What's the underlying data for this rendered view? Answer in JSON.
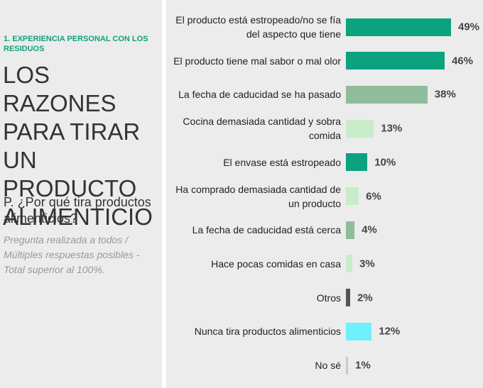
{
  "section": "1. EXPERIENCIA PERSONAL CON LOS RESIDUOS",
  "title": "LOS RAZONES PARA TIRAR UN PRODUCTO ALIMENTICIO",
  "question": "P. ¿Por qué tira productos alimenticios?",
  "note": "Pregunta realizada a todos / Múltiples respuestas posibles - Total superior al 100%.",
  "chart_data": {
    "type": "bar",
    "orientation": "horizontal",
    "categories": [
      "El producto está estropeado/no se fía del aspecto que tiene",
      "El producto tiene mal sabor o mal olor",
      "La fecha de caducidad se ha pasado",
      "Cocina demasiada cantidad y sobra comida",
      "El envase está estropeado",
      "Ha comprado demasiada cantidad de un producto",
      "La fecha de caducidad está cerca",
      "Hace pocas comidas en casa",
      "Otros",
      "Nunca tira productos alimenticios",
      "No sé"
    ],
    "values": [
      49,
      46,
      38,
      13,
      10,
      6,
      4,
      3,
      2,
      12,
      1
    ],
    "value_labels": [
      "49%",
      "46%",
      "38%",
      "13%",
      "10%",
      "6%",
      "4%",
      "3%",
      "2%",
      "12%",
      "1%"
    ],
    "colors": [
      "#0ba37f",
      "#0ba37f",
      "#8fbc9c",
      "#c9ecc8",
      "#0ba37f",
      "#c9ecc8",
      "#8fbc9c",
      "#c9ecc8",
      "#555555",
      "#6ff1fb",
      "#c8c8c8"
    ]
  }
}
